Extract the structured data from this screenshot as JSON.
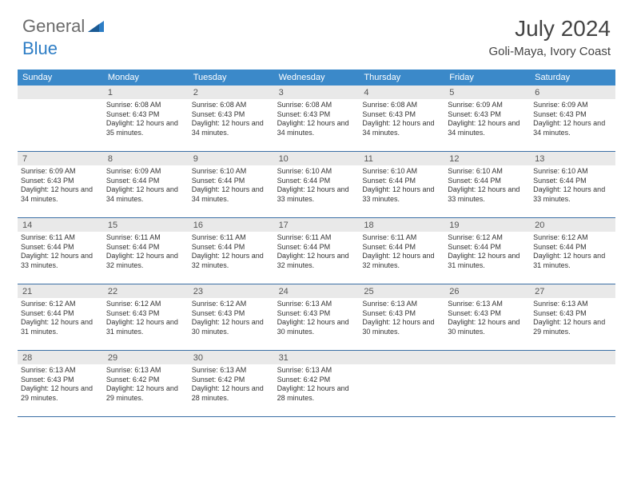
{
  "logo": {
    "text1": "General",
    "text2": "Blue"
  },
  "title": "July 2024",
  "location": "Goli-Maya, Ivory Coast",
  "weekdays": [
    "Sunday",
    "Monday",
    "Tuesday",
    "Wednesday",
    "Thursday",
    "Friday",
    "Saturday"
  ],
  "colors": {
    "header_bar": "#3b89c9",
    "row_border": "#3b6fa5",
    "daynum_bg": "#e9e9e9",
    "logo_gray": "#6b6b6b",
    "logo_blue": "#2d7dc5"
  },
  "weeks": [
    [
      {
        "day": "",
        "sunrise": "",
        "sunset": "",
        "daylight": ""
      },
      {
        "day": "1",
        "sunrise": "Sunrise: 6:08 AM",
        "sunset": "Sunset: 6:43 PM",
        "daylight": "Daylight: 12 hours and 35 minutes."
      },
      {
        "day": "2",
        "sunrise": "Sunrise: 6:08 AM",
        "sunset": "Sunset: 6:43 PM",
        "daylight": "Daylight: 12 hours and 34 minutes."
      },
      {
        "day": "3",
        "sunrise": "Sunrise: 6:08 AM",
        "sunset": "Sunset: 6:43 PM",
        "daylight": "Daylight: 12 hours and 34 minutes."
      },
      {
        "day": "4",
        "sunrise": "Sunrise: 6:08 AM",
        "sunset": "Sunset: 6:43 PM",
        "daylight": "Daylight: 12 hours and 34 minutes."
      },
      {
        "day": "5",
        "sunrise": "Sunrise: 6:09 AM",
        "sunset": "Sunset: 6:43 PM",
        "daylight": "Daylight: 12 hours and 34 minutes."
      },
      {
        "day": "6",
        "sunrise": "Sunrise: 6:09 AM",
        "sunset": "Sunset: 6:43 PM",
        "daylight": "Daylight: 12 hours and 34 minutes."
      }
    ],
    [
      {
        "day": "7",
        "sunrise": "Sunrise: 6:09 AM",
        "sunset": "Sunset: 6:43 PM",
        "daylight": "Daylight: 12 hours and 34 minutes."
      },
      {
        "day": "8",
        "sunrise": "Sunrise: 6:09 AM",
        "sunset": "Sunset: 6:44 PM",
        "daylight": "Daylight: 12 hours and 34 minutes."
      },
      {
        "day": "9",
        "sunrise": "Sunrise: 6:10 AM",
        "sunset": "Sunset: 6:44 PM",
        "daylight": "Daylight: 12 hours and 34 minutes."
      },
      {
        "day": "10",
        "sunrise": "Sunrise: 6:10 AM",
        "sunset": "Sunset: 6:44 PM",
        "daylight": "Daylight: 12 hours and 33 minutes."
      },
      {
        "day": "11",
        "sunrise": "Sunrise: 6:10 AM",
        "sunset": "Sunset: 6:44 PM",
        "daylight": "Daylight: 12 hours and 33 minutes."
      },
      {
        "day": "12",
        "sunrise": "Sunrise: 6:10 AM",
        "sunset": "Sunset: 6:44 PM",
        "daylight": "Daylight: 12 hours and 33 minutes."
      },
      {
        "day": "13",
        "sunrise": "Sunrise: 6:10 AM",
        "sunset": "Sunset: 6:44 PM",
        "daylight": "Daylight: 12 hours and 33 minutes."
      }
    ],
    [
      {
        "day": "14",
        "sunrise": "Sunrise: 6:11 AM",
        "sunset": "Sunset: 6:44 PM",
        "daylight": "Daylight: 12 hours and 33 minutes."
      },
      {
        "day": "15",
        "sunrise": "Sunrise: 6:11 AM",
        "sunset": "Sunset: 6:44 PM",
        "daylight": "Daylight: 12 hours and 32 minutes."
      },
      {
        "day": "16",
        "sunrise": "Sunrise: 6:11 AM",
        "sunset": "Sunset: 6:44 PM",
        "daylight": "Daylight: 12 hours and 32 minutes."
      },
      {
        "day": "17",
        "sunrise": "Sunrise: 6:11 AM",
        "sunset": "Sunset: 6:44 PM",
        "daylight": "Daylight: 12 hours and 32 minutes."
      },
      {
        "day": "18",
        "sunrise": "Sunrise: 6:11 AM",
        "sunset": "Sunset: 6:44 PM",
        "daylight": "Daylight: 12 hours and 32 minutes."
      },
      {
        "day": "19",
        "sunrise": "Sunrise: 6:12 AM",
        "sunset": "Sunset: 6:44 PM",
        "daylight": "Daylight: 12 hours and 31 minutes."
      },
      {
        "day": "20",
        "sunrise": "Sunrise: 6:12 AM",
        "sunset": "Sunset: 6:44 PM",
        "daylight": "Daylight: 12 hours and 31 minutes."
      }
    ],
    [
      {
        "day": "21",
        "sunrise": "Sunrise: 6:12 AM",
        "sunset": "Sunset: 6:44 PM",
        "daylight": "Daylight: 12 hours and 31 minutes."
      },
      {
        "day": "22",
        "sunrise": "Sunrise: 6:12 AM",
        "sunset": "Sunset: 6:43 PM",
        "daylight": "Daylight: 12 hours and 31 minutes."
      },
      {
        "day": "23",
        "sunrise": "Sunrise: 6:12 AM",
        "sunset": "Sunset: 6:43 PM",
        "daylight": "Daylight: 12 hours and 30 minutes."
      },
      {
        "day": "24",
        "sunrise": "Sunrise: 6:13 AM",
        "sunset": "Sunset: 6:43 PM",
        "daylight": "Daylight: 12 hours and 30 minutes."
      },
      {
        "day": "25",
        "sunrise": "Sunrise: 6:13 AM",
        "sunset": "Sunset: 6:43 PM",
        "daylight": "Daylight: 12 hours and 30 minutes."
      },
      {
        "day": "26",
        "sunrise": "Sunrise: 6:13 AM",
        "sunset": "Sunset: 6:43 PM",
        "daylight": "Daylight: 12 hours and 30 minutes."
      },
      {
        "day": "27",
        "sunrise": "Sunrise: 6:13 AM",
        "sunset": "Sunset: 6:43 PM",
        "daylight": "Daylight: 12 hours and 29 minutes."
      }
    ],
    [
      {
        "day": "28",
        "sunrise": "Sunrise: 6:13 AM",
        "sunset": "Sunset: 6:43 PM",
        "daylight": "Daylight: 12 hours and 29 minutes."
      },
      {
        "day": "29",
        "sunrise": "Sunrise: 6:13 AM",
        "sunset": "Sunset: 6:42 PM",
        "daylight": "Daylight: 12 hours and 29 minutes."
      },
      {
        "day": "30",
        "sunrise": "Sunrise: 6:13 AM",
        "sunset": "Sunset: 6:42 PM",
        "daylight": "Daylight: 12 hours and 28 minutes."
      },
      {
        "day": "31",
        "sunrise": "Sunrise: 6:13 AM",
        "sunset": "Sunset: 6:42 PM",
        "daylight": "Daylight: 12 hours and 28 minutes."
      },
      {
        "day": "",
        "sunrise": "",
        "sunset": "",
        "daylight": ""
      },
      {
        "day": "",
        "sunrise": "",
        "sunset": "",
        "daylight": ""
      },
      {
        "day": "",
        "sunrise": "",
        "sunset": "",
        "daylight": ""
      }
    ]
  ]
}
